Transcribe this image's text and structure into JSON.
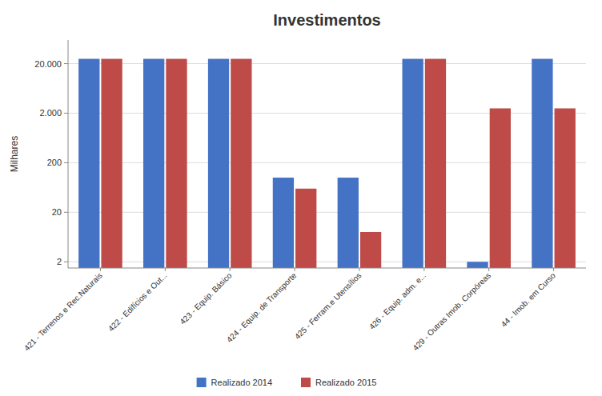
{
  "chart_data": {
    "type": "bar",
    "title": "Investimentos",
    "y_label": "Milhares",
    "categories": [
      "421 - Terrenos e Rec.Naturais",
      "422 - Edifícios e Out...",
      "423 - Equip. Básico",
      "424 - Equip. de Transporte",
      "425 - Ferram.e Utensílios",
      "426 - Equip. adm. e...",
      "429 - Outras Imob. Corpóreas",
      "44 - Imob. em Curso"
    ],
    "series": [
      {
        "name": "Realizado 2014",
        "color": "#4472C4",
        "values": [
          25000,
          25000,
          25000,
          100,
          100,
          25000,
          2,
          25000
        ]
      },
      {
        "name": "Realizado 2015",
        "color": "#BE4B48",
        "values": [
          25000,
          25000,
          25000,
          60,
          8,
          25000,
          2500,
          2500
        ]
      }
    ],
    "log": "y",
    "ylim": [
      1.5,
      60000
    ],
    "yticks": [
      2,
      20,
      200,
      {
        "value": 2000,
        "label": "2.000"
      },
      {
        "value": 20000,
        "label": "20.000"
      }
    ],
    "grid": true,
    "legend": "bottom"
  }
}
